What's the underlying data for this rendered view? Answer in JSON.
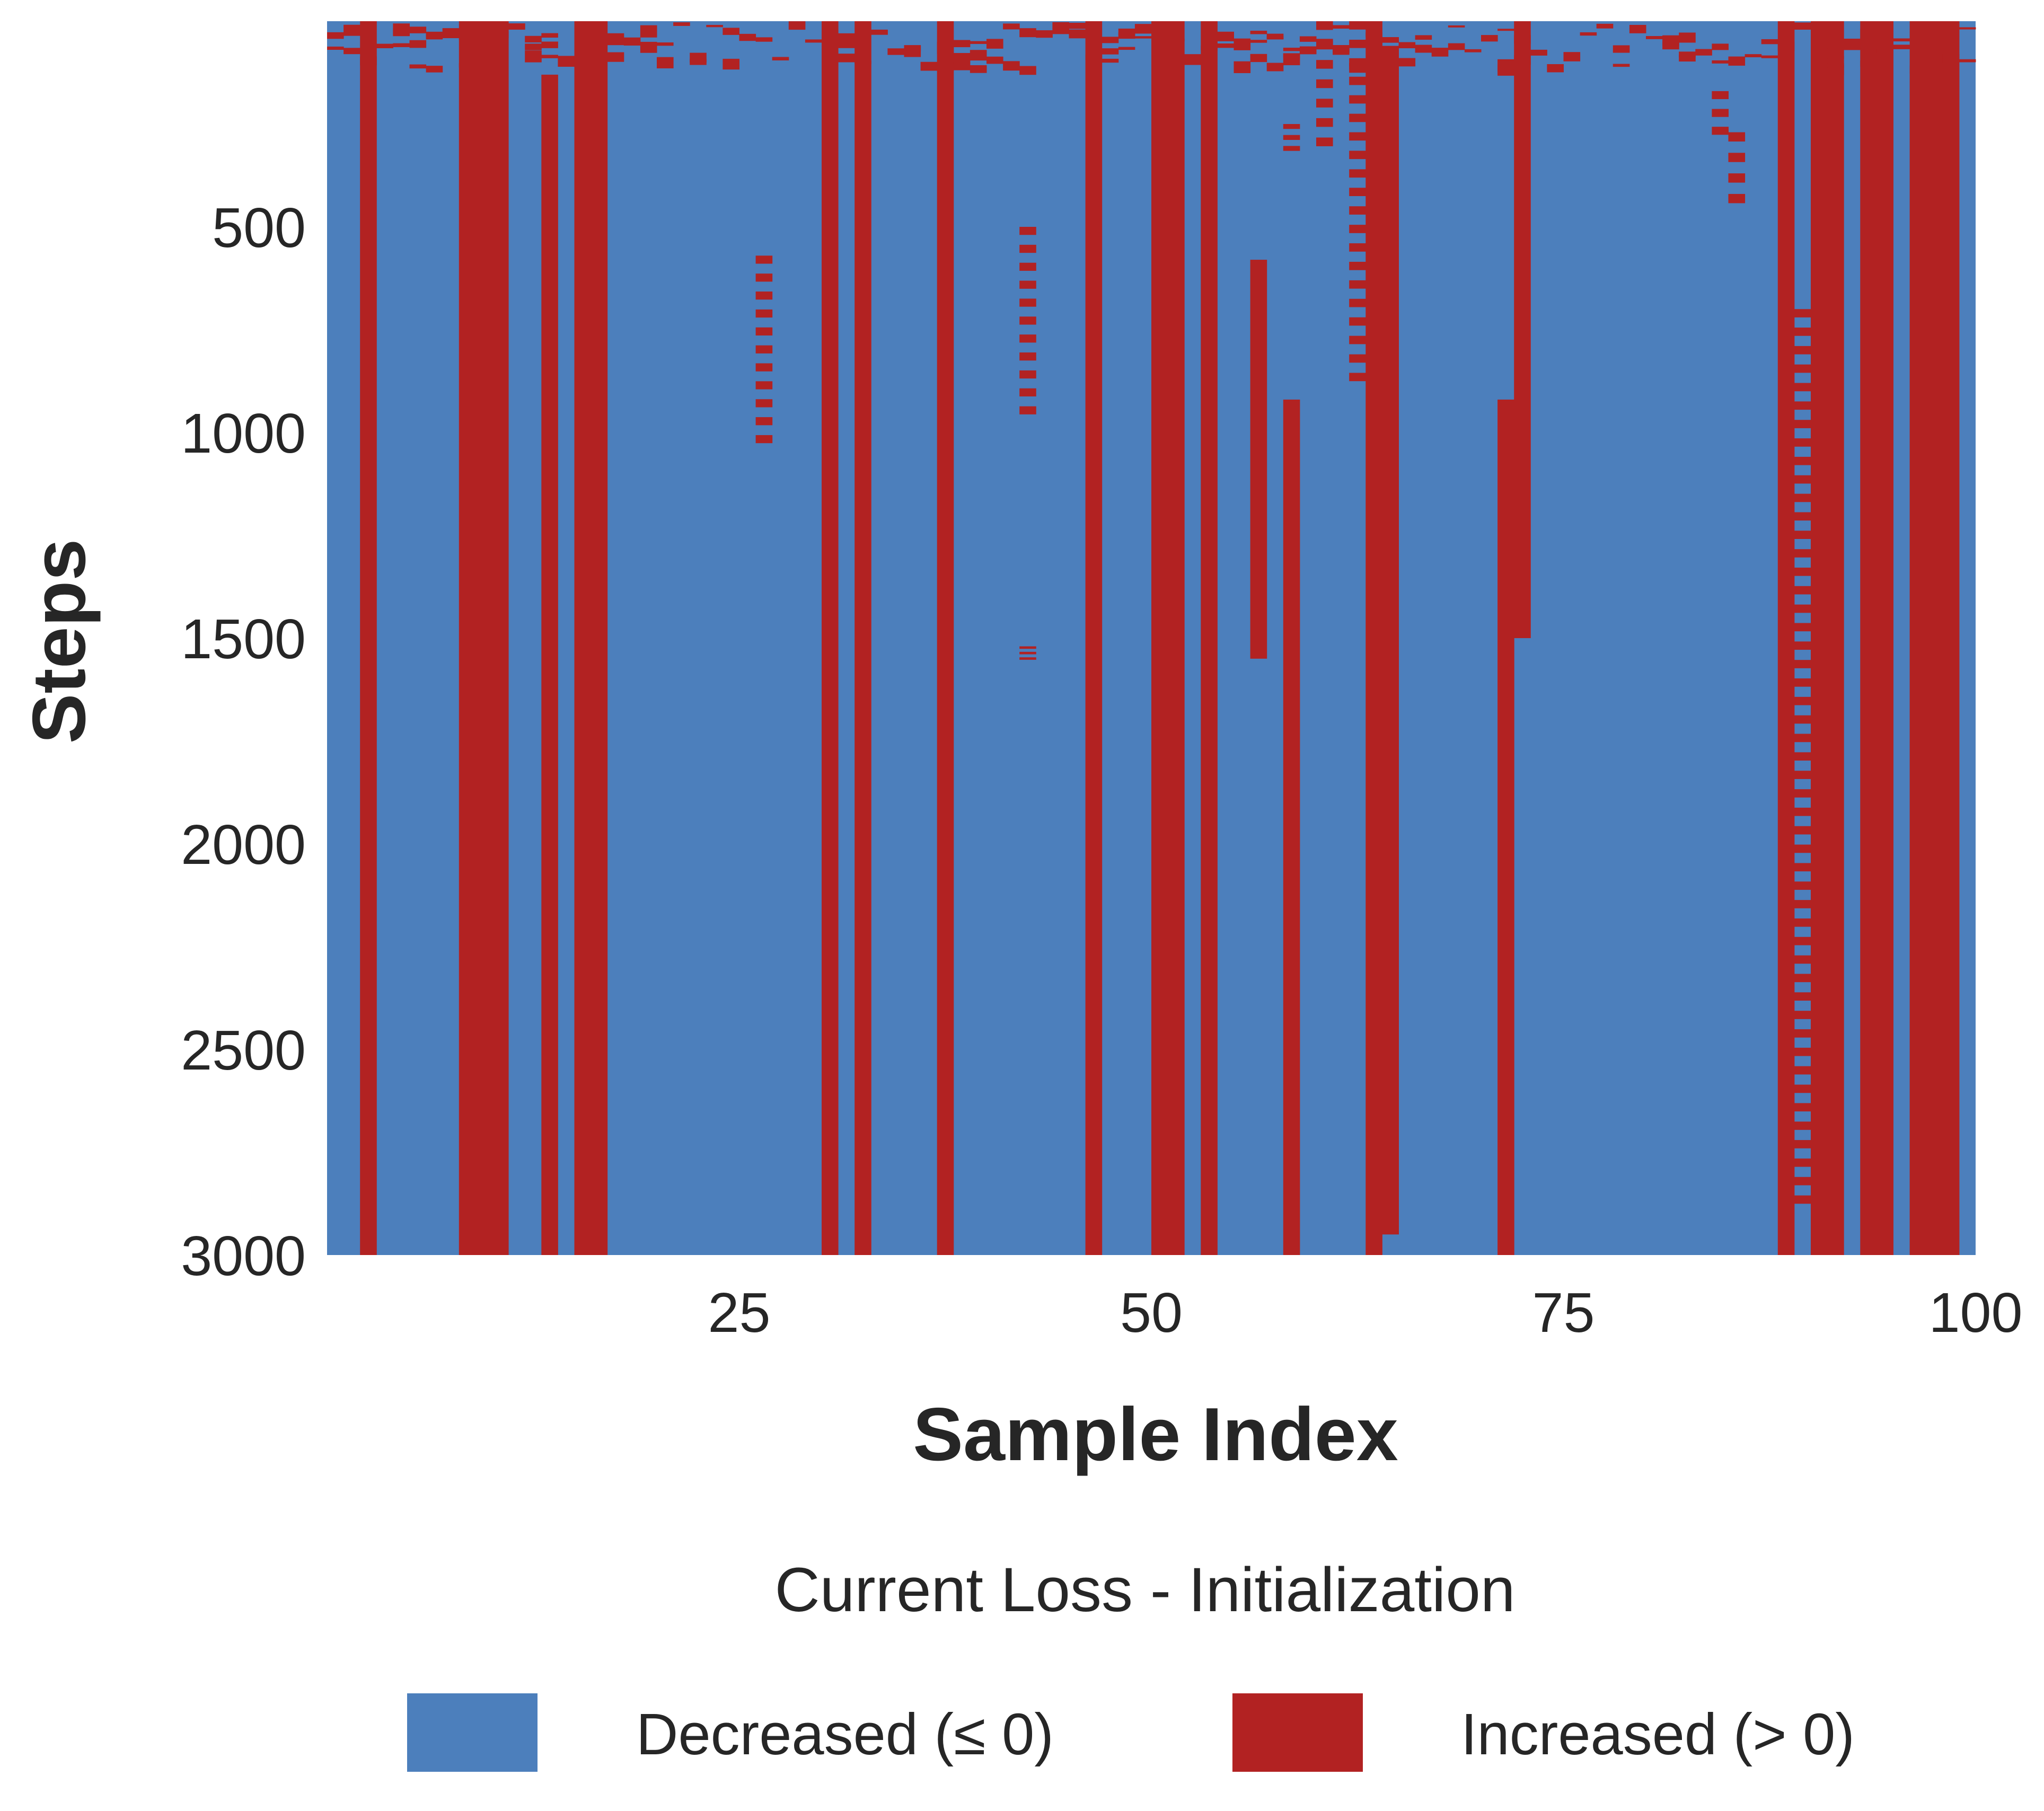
{
  "chart_data": {
    "type": "heatmap",
    "xlabel": "Sample Index",
    "ylabel": "Steps",
    "x_ticks": [
      25,
      50,
      75,
      100
    ],
    "y_ticks": [
      500,
      1000,
      1500,
      2000,
      2500,
      3000
    ],
    "xlim": [
      0,
      100
    ],
    "ylim": [
      0,
      3000
    ],
    "y_inverted": true,
    "grid": false,
    "legend_position": "bottom",
    "legend": {
      "title": "Current Loss - Initialization",
      "entries": [
        {
          "label": "Decreased (≤ 0)",
          "color": "#4c7fbc"
        },
        {
          "label": "Increased (> 0)",
          "color": "#b22222"
        }
      ]
    },
    "cell_meaning": "sign of (current loss - initialization loss) per sample index and step",
    "persistent_increase_samples": [
      {
        "samples": [
          3
        ],
        "from_step": 0,
        "to_step": 3000
      },
      {
        "samples": [
          9,
          10,
          11
        ],
        "from_step": 0,
        "to_step": 3000
      },
      {
        "samples": [
          14
        ],
        "from_step": 130,
        "to_step": 3000
      },
      {
        "samples": [
          16,
          17
        ],
        "from_step": 0,
        "to_step": 3000
      },
      {
        "samples": [
          31
        ],
        "from_step": 0,
        "to_step": 3000
      },
      {
        "samples": [
          33
        ],
        "from_step": 0,
        "to_step": 3000
      },
      {
        "samples": [
          38
        ],
        "from_step": 0,
        "to_step": 3000
      },
      {
        "samples": [
          47
        ],
        "from_step": 0,
        "to_step": 3000
      },
      {
        "samples": [
          51,
          52
        ],
        "from_step": 0,
        "to_step": 3000
      },
      {
        "samples": [
          54
        ],
        "from_step": 0,
        "to_step": 3000
      },
      {
        "samples": [
          57
        ],
        "from_step": 580,
        "to_step": 1550
      },
      {
        "samples": [
          59
        ],
        "from_step": 920,
        "to_step": 3000
      },
      {
        "samples": [
          64
        ],
        "from_step": 0,
        "to_step": 3000
      },
      {
        "samples": [
          65
        ],
        "from_step": 60,
        "to_step": 2950
      },
      {
        "samples": [
          72
        ],
        "from_step": 920,
        "to_step": 3000
      },
      {
        "samples": [
          73
        ],
        "from_step": 0,
        "to_step": 1500
      },
      {
        "samples": [
          89
        ],
        "from_step": 0,
        "to_step": 3000
      },
      {
        "samples": [
          91,
          92
        ],
        "from_step": 0,
        "to_step": 3000
      },
      {
        "samples": [
          94,
          95
        ],
        "from_step": 0,
        "to_step": 3000
      },
      {
        "samples": [
          97,
          98,
          99
        ],
        "from_step": 0,
        "to_step": 3000
      }
    ],
    "intermittent_increase_samples": [
      {
        "samples": [
          27
        ],
        "from_step": 570,
        "to_step": 1050
      },
      {
        "samples": [
          43
        ],
        "from_step": 500,
        "to_step": 980
      },
      {
        "samples": [
          43
        ],
        "from_step": 1520,
        "to_step": 1560
      },
      {
        "samples": [
          59
        ],
        "from_step": 250,
        "to_step": 330
      },
      {
        "samples": [
          61
        ],
        "from_step": 0,
        "to_step": 330
      },
      {
        "samples": [
          63
        ],
        "from_step": 0,
        "to_step": 900
      },
      {
        "samples": [
          85
        ],
        "from_step": 170,
        "to_step": 300
      },
      {
        "samples": [
          86
        ],
        "from_step": 270,
        "to_step": 470
      },
      {
        "samples": [
          90
        ],
        "from_step": 700,
        "to_step": 2900
      }
    ]
  }
}
